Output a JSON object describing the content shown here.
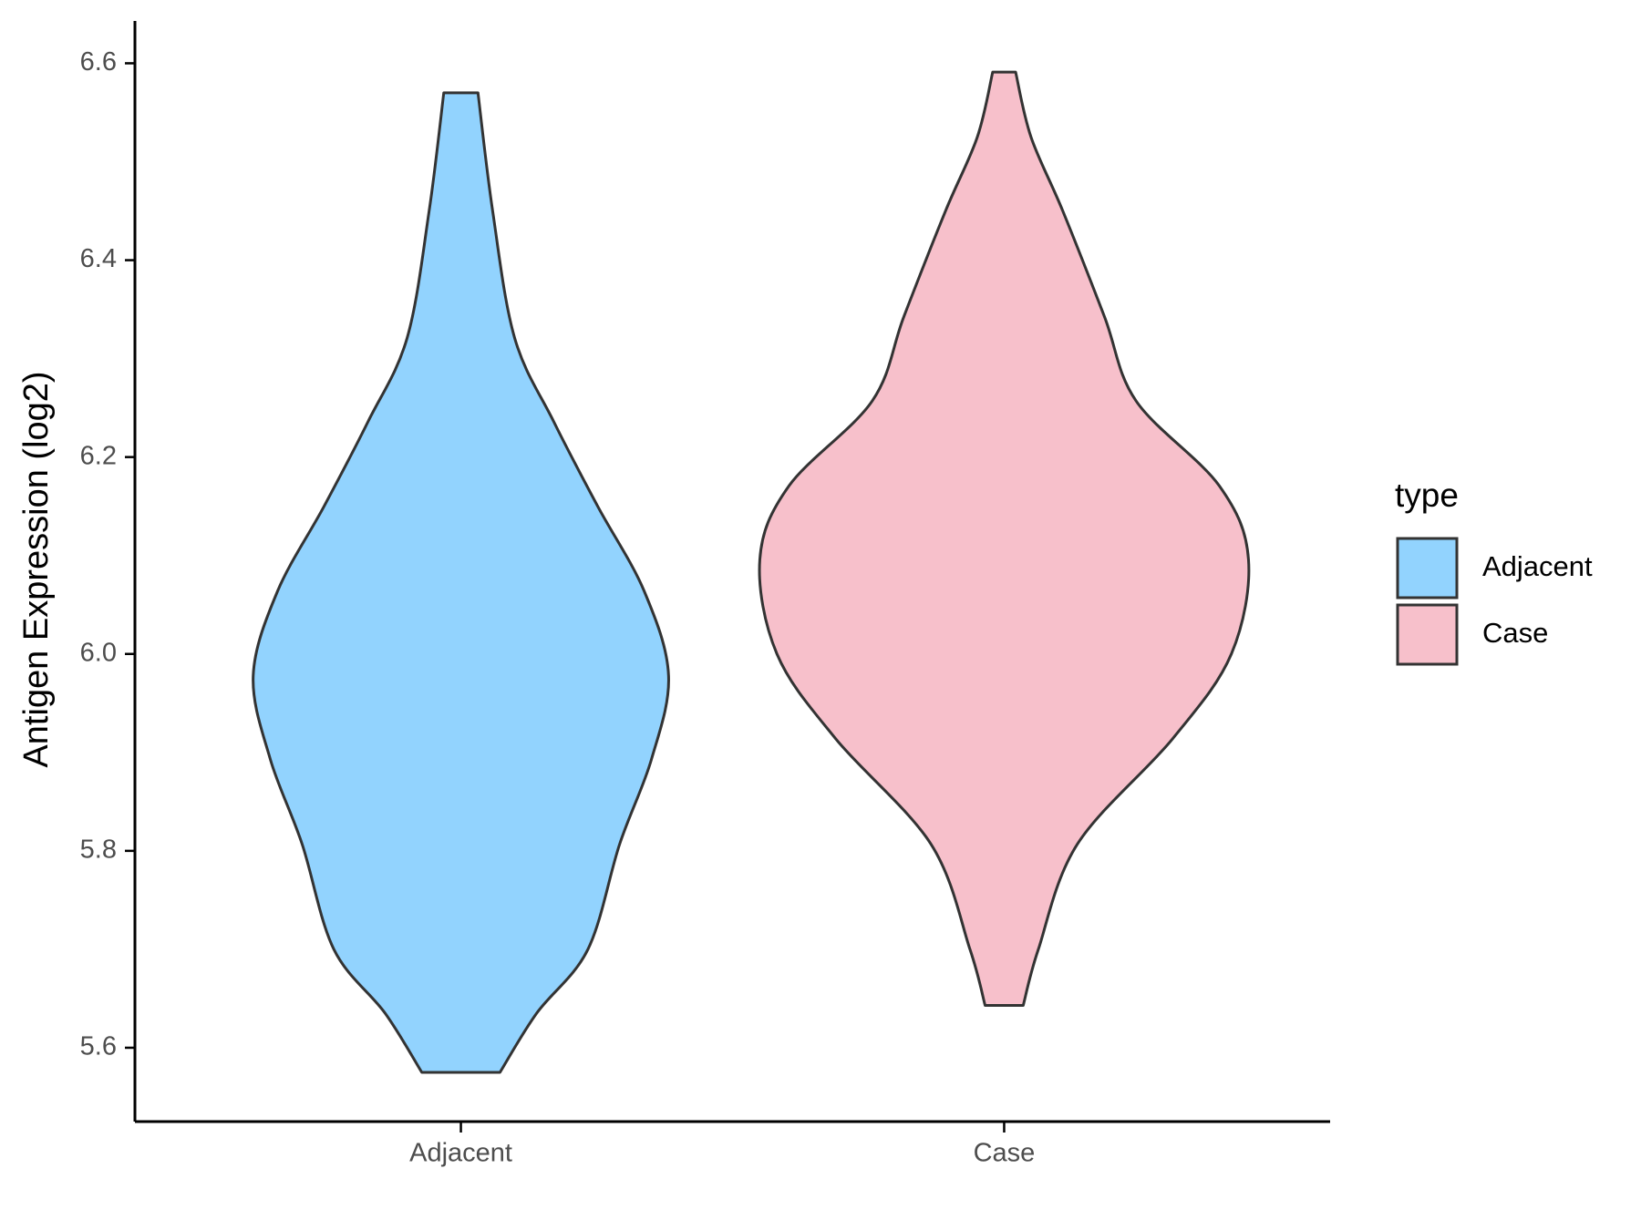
{
  "chart_data": {
    "type": "violin",
    "ylabel": "Antigen Expression (log2)",
    "categories": [
      "Adjacent",
      "Case"
    ],
    "series": [
      {
        "name": "Adjacent",
        "color": "#92d3fe",
        "y": [
          5.575,
          5.635,
          5.7,
          5.807,
          5.893,
          5.978,
          6.064,
          6.15,
          6.236,
          6.321,
          6.45,
          6.57
        ],
        "density": [
          0.16,
          0.31,
          0.52,
          0.65,
          0.78,
          0.85,
          0.75,
          0.56,
          0.38,
          0.22,
          0.13,
          0.07
        ]
      },
      {
        "name": "Case",
        "color": "#f7c0cb",
        "y": [
          5.643,
          5.7,
          5.807,
          5.914,
          6.0,
          6.096,
          6.171,
          6.257,
          6.343,
          6.45,
          6.525,
          6.591
        ],
        "density": [
          0.078,
          0.14,
          0.3,
          0.69,
          0.93,
          1.0,
          0.88,
          0.54,
          0.41,
          0.24,
          0.11,
          0.047
        ]
      }
    ],
    "ylim": [
      5.525,
      6.643
    ],
    "yticks": [
      {
        "value": 5.6,
        "label": "5.6"
      },
      {
        "value": 5.8,
        "label": "5.8"
      },
      {
        "value": 6.0,
        "label": "6.0"
      },
      {
        "value": 6.2,
        "label": "6.2"
      },
      {
        "value": 6.4,
        "label": "6.4"
      },
      {
        "value": 6.6,
        "label": "6.6"
      }
    ],
    "legend_title": "type",
    "legend_position": "right"
  }
}
